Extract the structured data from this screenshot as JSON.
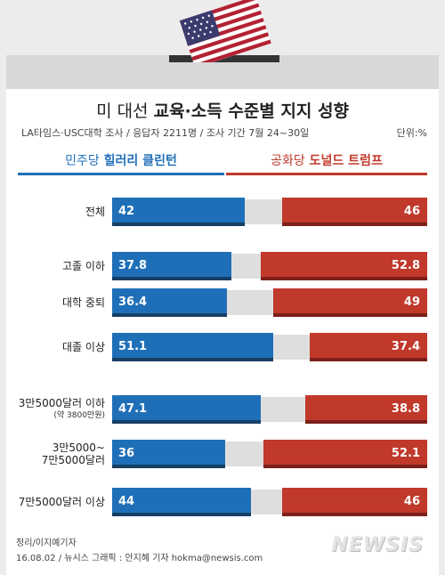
{
  "header": {
    "title_prefix": "미 대선 ",
    "title_main": "교육·소득 수준별 지지 성향",
    "subtitle": "LA타임스·USC대학 조사 / 응답자 2211명 / 조사 기간 7월 24~30일",
    "unit": "단위:%"
  },
  "legend": {
    "dem_party": "민주당",
    "dem_candidate": "힐러리 클린턴",
    "rep_party": "공화당",
    "rep_candidate": "도널드 트럼프",
    "dem_color": "#1f6fb8",
    "rep_color": "#c0392b"
  },
  "chart_data": {
    "type": "bar",
    "categories": [
      "전체",
      "고졸 이하",
      "대학 중퇴",
      "대졸 이상",
      "3만5000달러 이하",
      "3만5000~7만5000달러",
      "7만5000달러 이상"
    ],
    "category_notes": [
      "",
      "",
      "",
      "",
      "(약 3800만원)",
      "",
      ""
    ],
    "category_lines": [
      [
        "전체"
      ],
      [
        "고졸 이하"
      ],
      [
        "대학 중퇴"
      ],
      [
        "대졸 이상"
      ],
      [
        "3만5000달러 이하"
      ],
      [
        "3만5000~",
        "7만5000달러"
      ],
      [
        "7만5000달러 이상"
      ]
    ],
    "series": [
      {
        "name": "민주당 힐러리 클린턴",
        "values": [
          42,
          37.8,
          36.4,
          51.1,
          47.1,
          36,
          44
        ]
      },
      {
        "name": "공화당 도널드 트럼프",
        "values": [
          46,
          52.8,
          49,
          37.4,
          38.8,
          52.1,
          46
        ]
      }
    ],
    "value_labels": {
      "dem": [
        "42",
        "37.8",
        "36.4",
        "51.1",
        "47.1",
        "36",
        "44"
      ],
      "rep": [
        "46",
        "52.8",
        "49",
        "37.4",
        "38.8",
        "52.1",
        "46"
      ]
    },
    "ylim": [
      0,
      100
    ]
  },
  "footer": {
    "line1": "정리/이지예기자",
    "line2": "16.08.02 / 뉴시스 그래픽 : 안지혜 기자 hokma@newsis.com",
    "logo": "NEWSIS"
  }
}
